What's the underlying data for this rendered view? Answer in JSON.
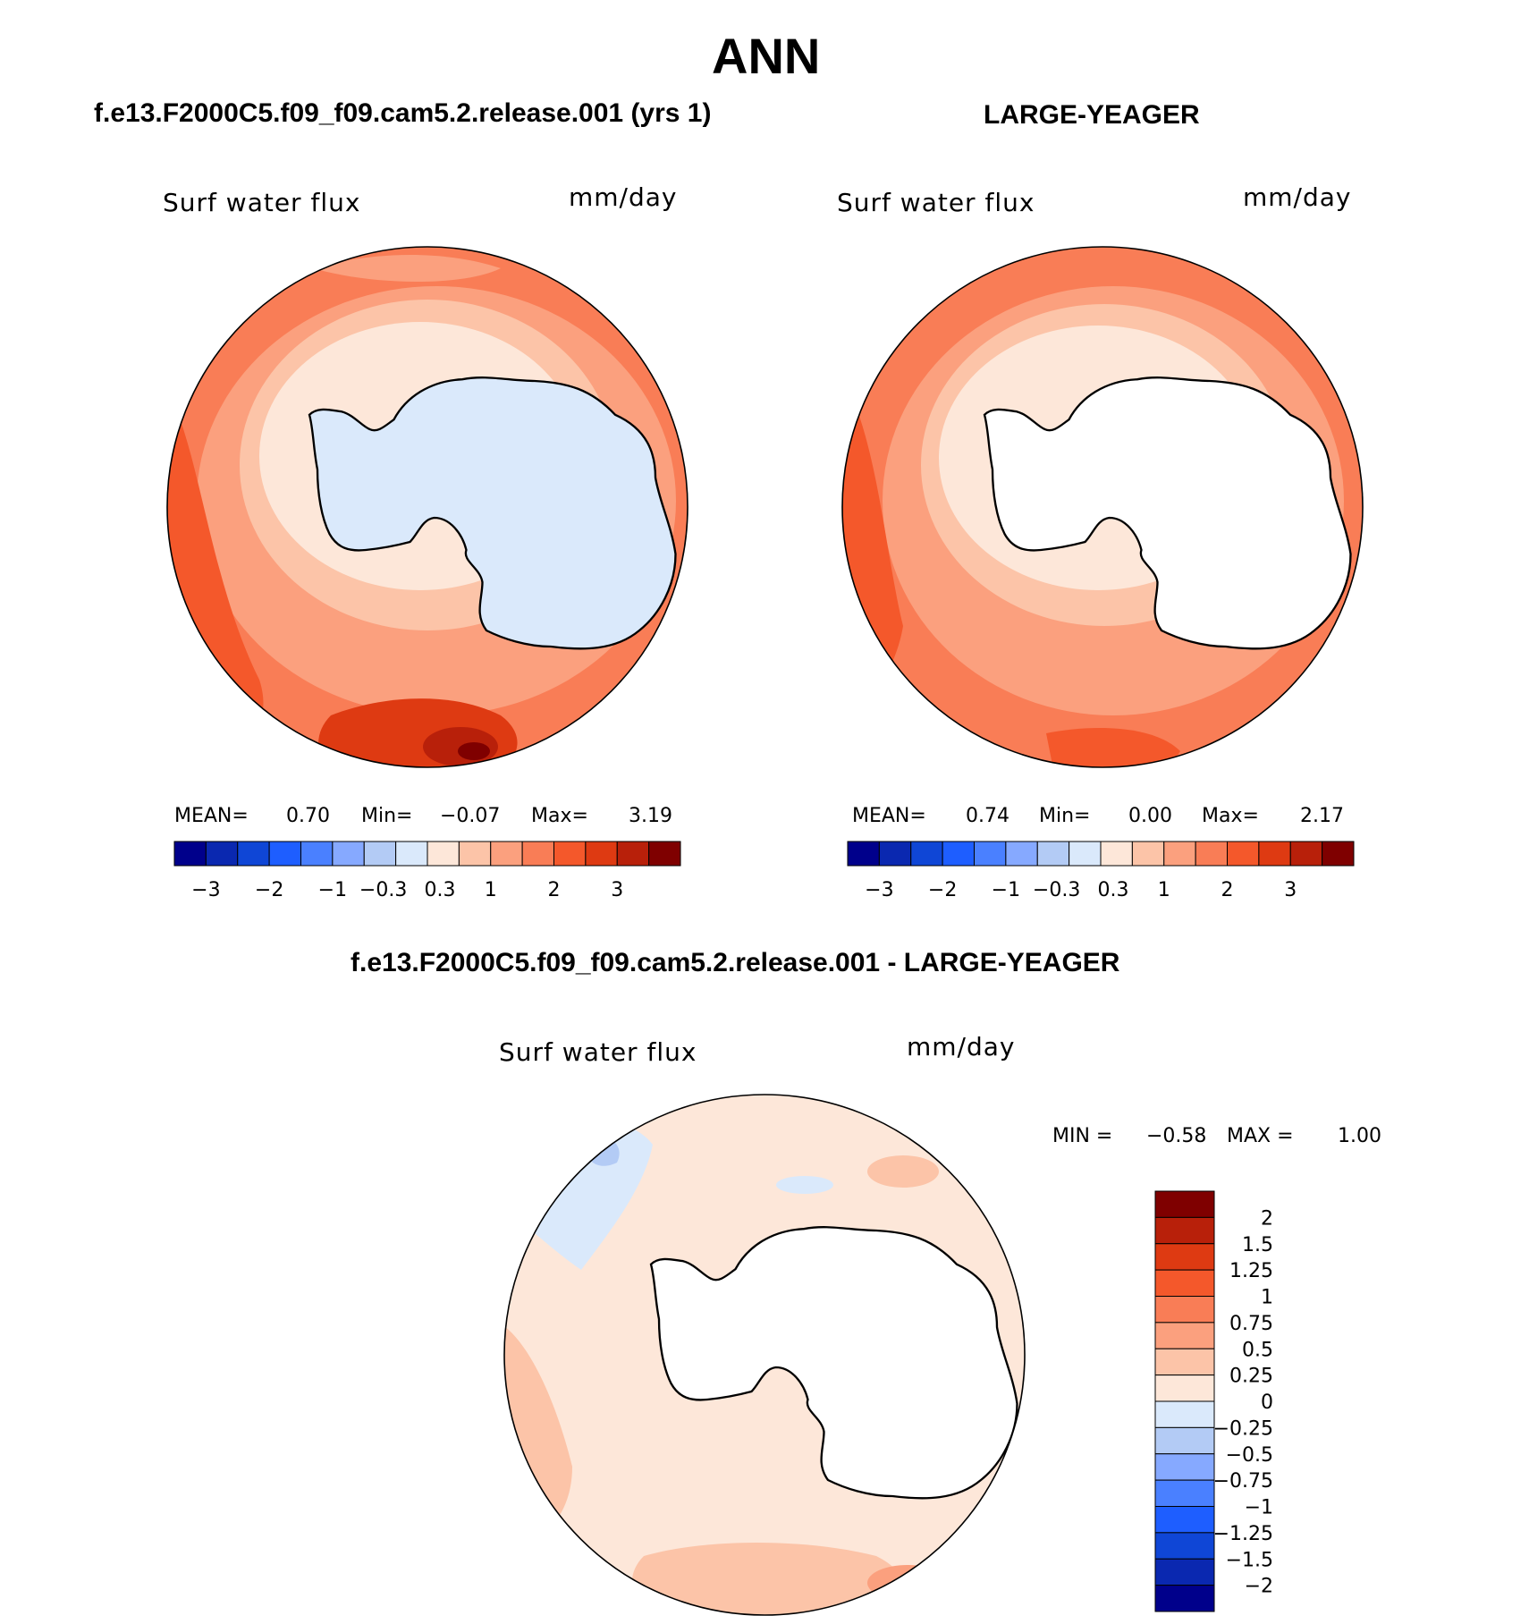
{
  "title": "ANN",
  "panels": [
    {
      "heading": "f.e13.F2000C5.f09_f09.cam5.2.release.001 (yrs 1)",
      "variable": "Surf water flux",
      "units": "mm/day",
      "stats": {
        "mean_label": "MEAN=",
        "mean": "0.70",
        "min_label": "Min=",
        "min": "−0.07",
        "max_label": "Max=",
        "max": "3.19"
      },
      "colorbar_ticks": [
        "−3",
        "−2",
        "−1",
        "−0.3",
        "0.3",
        "1",
        "2",
        "3"
      ]
    },
    {
      "heading": "LARGE-YEAGER",
      "variable": "Surf water flux",
      "units": "mm/day",
      "stats": {
        "mean_label": "MEAN=",
        "mean": "0.74",
        "min_label": "Min=",
        "min": "0.00",
        "max_label": "Max=",
        "max": "2.17"
      },
      "colorbar_ticks": [
        "−3",
        "−2",
        "−1",
        "−0.3",
        "0.3",
        "1",
        "2",
        "3"
      ]
    },
    {
      "heading": "f.e13.F2000C5.f09_f09.cam5.2.release.001 - LARGE-YEAGER",
      "variable": "Surf water flux",
      "units": "mm/day",
      "stats": {
        "min_label": "MIN =",
        "min": "−0.58",
        "max_label": "MAX =",
        "max": "1.00"
      },
      "colorbar_ticks": [
        "2",
        "1.5",
        "1.25",
        "1",
        "0.75",
        "0.5",
        "0.25",
        "0",
        "−0.25",
        "−0.5",
        "−0.75",
        "−1",
        "−1.25",
        "−1.5",
        "−2"
      ]
    }
  ],
  "colors": {
    "abs_scale": [
      "#00008b",
      "#0a28b0",
      "#0f46d6",
      "#1e5eff",
      "#4a80ff",
      "#86a9ff",
      "#b3cbf5",
      "#dae9fb",
      "#fde7d9",
      "#fcc4a8",
      "#fba07e",
      "#f97d56",
      "#f4582b",
      "#de3a12",
      "#b8200a",
      "#7f0000"
    ],
    "diff_scale": [
      "#7f0000",
      "#b8200a",
      "#de3a12",
      "#f4582b",
      "#f97d56",
      "#fba07e",
      "#fcc4a8",
      "#fde7d9",
      "#dae9fb",
      "#b3cbf5",
      "#86a9ff",
      "#4a80ff",
      "#1e5eff",
      "#0f46d6",
      "#0a28b0",
      "#00008b"
    ],
    "ocean_1": "#f97d56",
    "ocean_2": "#fba07e",
    "ocean_3": "#fcc4a8",
    "ocean_4": "#fde7d9",
    "land_model": "#dae9fb",
    "land_obs": "#ffffff",
    "diff_base": "#fde7d9"
  }
}
